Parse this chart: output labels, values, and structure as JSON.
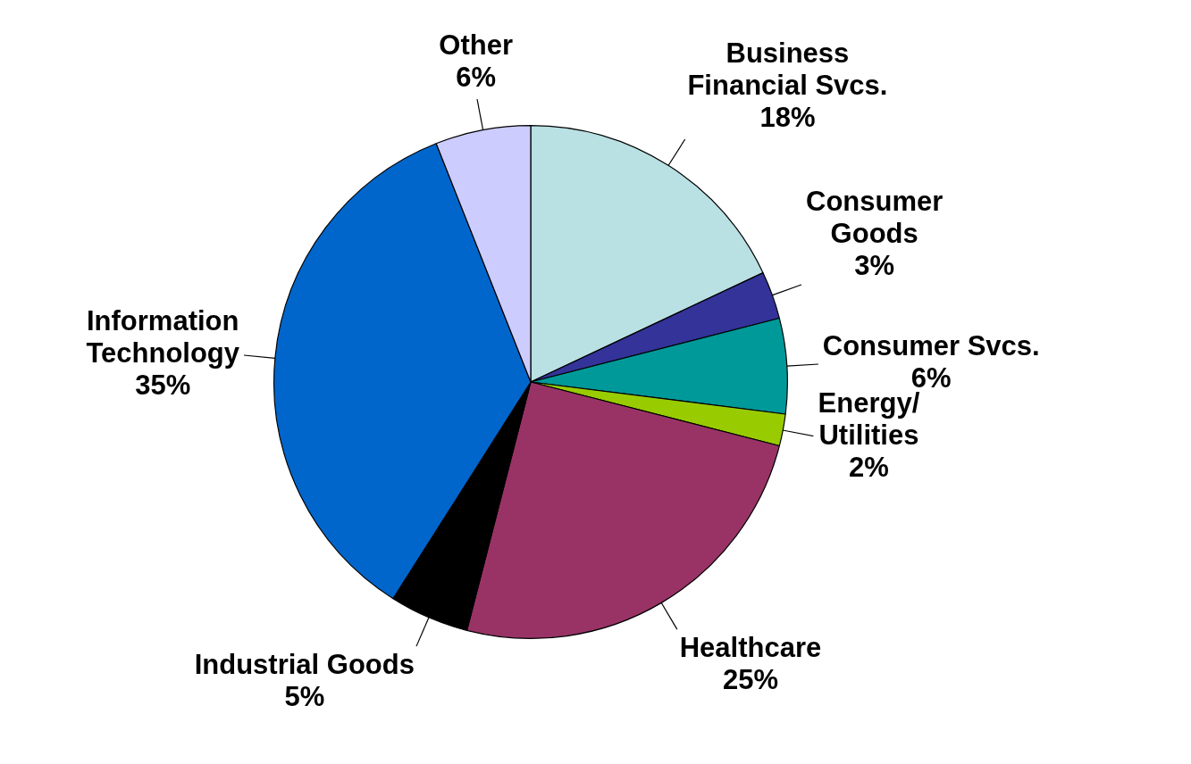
{
  "chart_data": {
    "type": "pie",
    "categories": [
      "Business\nFinancial Svcs.",
      "Consumer\nGoods",
      "Consumer Svcs.",
      "Energy/\nUtilities",
      "Healthcare",
      "Industrial Goods",
      "Information\nTechnology",
      "Other"
    ],
    "values": [
      18,
      3,
      6,
      2,
      25,
      5,
      35,
      6
    ],
    "value_labels": [
      "18%",
      "3%",
      "6%",
      "2%",
      "25%",
      "5%",
      "35%",
      "6%"
    ],
    "colors": [
      "#b9e0e3",
      "#333399",
      "#009999",
      "#99cc00",
      "#993366",
      "#000000",
      "#0066cc",
      "#ccccff"
    ]
  }
}
